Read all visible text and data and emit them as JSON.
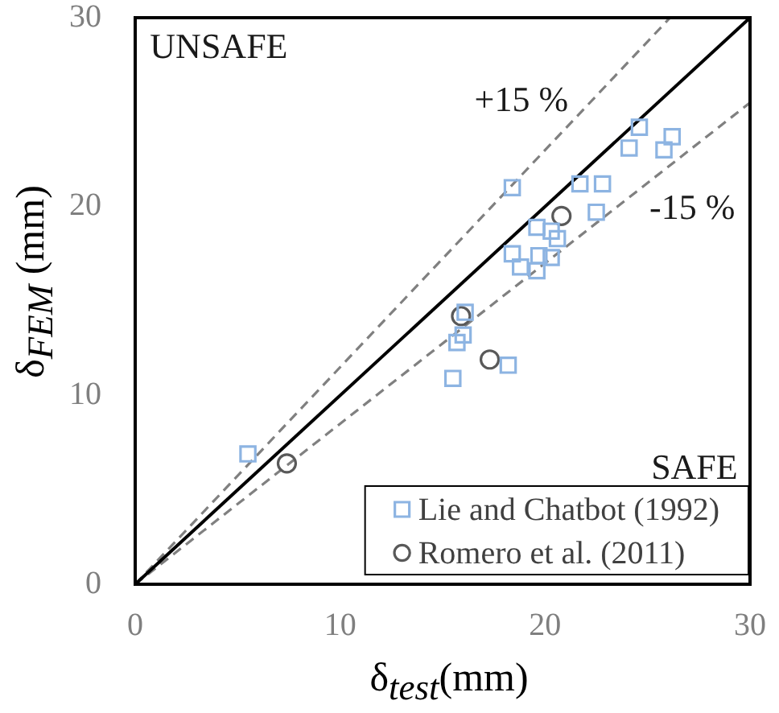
{
  "chart_data": {
    "type": "scatter",
    "xlabel": "δ$_{test}$(mm)",
    "ylabel": "δ$_{FEM}$ (mm)",
    "xlim": [
      0,
      30
    ],
    "ylim": [
      0,
      30
    ],
    "xticks": [
      0,
      10,
      20,
      30
    ],
    "yticks": [
      0,
      10,
      20,
      30
    ],
    "grid": false,
    "legend": "bottom right",
    "series": [
      {
        "name": "Lie and Chatbot (1992)",
        "color": "#8db4e2",
        "marker": "square",
        "x": [
          18.4,
          24.6,
          24.1,
          26.2,
          25.8,
          21.7,
          22.8,
          22.5,
          19.6,
          20.3,
          20.6,
          18.4,
          19.7,
          20.3,
          18.8,
          19.6,
          16.1,
          16.0,
          15.7,
          15.5,
          18.2,
          5.5
        ],
        "values": [
          21.0,
          24.2,
          23.1,
          23.7,
          23.0,
          21.2,
          21.2,
          19.7,
          18.9,
          18.7,
          18.3,
          17.5,
          17.4,
          17.3,
          16.8,
          16.6,
          14.4,
          13.2,
          12.8,
          10.9,
          11.6,
          6.9
        ]
      },
      {
        "name": "Romero et al. (2011)",
        "color": "#595959",
        "marker": "circle",
        "x": [
          20.8,
          15.9,
          17.3,
          7.4
        ],
        "values": [
          19.5,
          14.2,
          11.9,
          6.4
        ]
      },
      {
        "type": "line",
        "color": "#000000",
        "line_style": "solid",
        "marker": "none",
        "x": [
          0,
          30
        ],
        "values": [
          0,
          30
        ]
      },
      {
        "type": "line",
        "color": "#808080",
        "line_style": "dashed",
        "marker": "none",
        "x": [
          0,
          26.1
        ],
        "values": [
          0,
          30
        ]
      },
      {
        "type": "line",
        "color": "#808080",
        "line_style": "dashed",
        "marker": "none",
        "x": [
          0,
          30
        ],
        "values": [
          0,
          25.5
        ]
      }
    ],
    "annotations": [
      "UNSAFE",
      "SAFE",
      "+15 %",
      "-15 %"
    ]
  }
}
